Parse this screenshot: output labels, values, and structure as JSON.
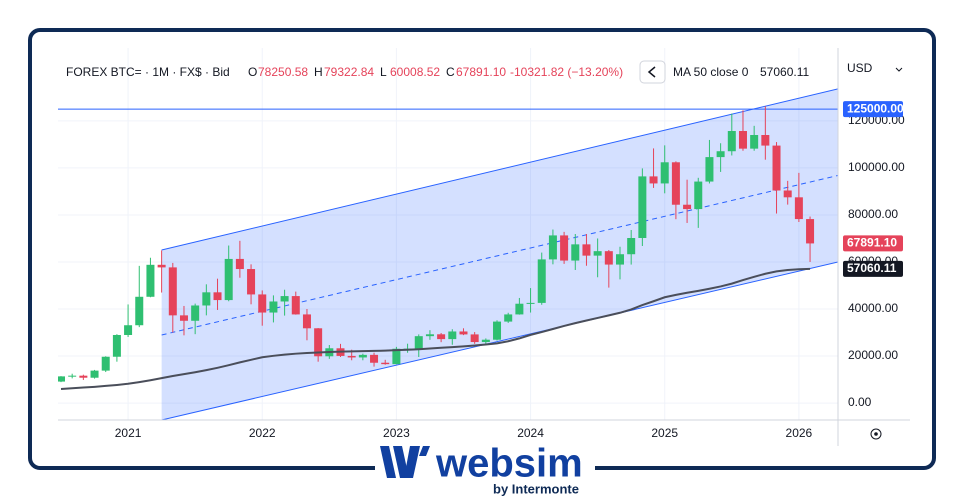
{
  "header": {
    "symbol": "FOREX BTC= · 1M · FX$ · Bid",
    "ohlc": [
      {
        "key": "O",
        "value": "78250.58"
      },
      {
        "key": "H",
        "value": "79322.84"
      },
      {
        "key": "L",
        "value": "60008.52"
      },
      {
        "key": "C",
        "value": "67891.10"
      }
    ],
    "change": "-10321.82 (−13.20%)",
    "indicator": "MA 50 close 0",
    "currency": "USD"
  },
  "chart_data": {
    "type": "candlestick",
    "categories": [
      null,
      null,
      null,
      null,
      null,
      null,
      "2021",
      null,
      null,
      null,
      null,
      null,
      null,
      null,
      null,
      null,
      null,
      null,
      "2022",
      null,
      null,
      null,
      null,
      null,
      null,
      null,
      null,
      null,
      null,
      null,
      "2023",
      null,
      null,
      null,
      null,
      null,
      null,
      null,
      null,
      null,
      null,
      null,
      "2024",
      null,
      null,
      null,
      null,
      null,
      null,
      null,
      null,
      null,
      null,
      null,
      "2025",
      null,
      null,
      null,
      null,
      null,
      null,
      null,
      null,
      null,
      null,
      null,
      "2026",
      null
    ],
    "open": [
      9140,
      11350,
      11650,
      10780,
      13800,
      19700,
      28950,
      33100,
      45200,
      58800,
      57700,
      37300,
      35000,
      41500,
      47100,
      43800,
      61300,
      57000,
      46200,
      38500,
      43200,
      45500,
      37700,
      31800,
      19900,
      23300,
      20050,
      19400,
      20500,
      17150,
      16550,
      23100,
      23150,
      28450,
      29250,
      27200,
      30450,
      29200,
      25950,
      26950,
      34650,
      37700,
      42250,
      42600,
      61100,
      71300,
      60600,
      67500,
      62700,
      64600,
      58900,
      63300,
      70200,
      96400,
      93400,
      102400,
      84350,
      82500,
      94200,
      104600,
      107100,
      115700,
      108200,
      114000,
      109500,
      90400,
      87500,
      78250.58
    ],
    "high": [
      11450,
      12480,
      12070,
      14100,
      19900,
      29300,
      41950,
      58350,
      61800,
      64900,
      59600,
      41300,
      42300,
      50500,
      52900,
      67000,
      69000,
      59000,
      47900,
      45800,
      48200,
      47400,
      40000,
      31900,
      24700,
      25200,
      22700,
      21000,
      21400,
      18400,
      23900,
      25250,
      29200,
      31000,
      29800,
      31400,
      31800,
      30200,
      27500,
      35200,
      38400,
      44700,
      48900,
      64000,
      73800,
      72800,
      71900,
      71900,
      70000,
      65100,
      66500,
      73600,
      99800,
      108300,
      109600,
      102800,
      95000,
      95800,
      111900,
      110500,
      123100,
      124500,
      117900,
      126200,
      111000,
      94500,
      97900,
      79322.84
    ],
    "low": [
      8900,
      10500,
      9830,
      10400,
      13200,
      17600,
      28100,
      32300,
      45000,
      47000,
      30000,
      28800,
      29300,
      37300,
      39600,
      43300,
      53300,
      42000,
      32900,
      34300,
      37200,
      37600,
      26700,
      17600,
      18800,
      19600,
      18200,
      18200,
      15500,
      16300,
      16500,
      21400,
      19600,
      26900,
      25900,
      24800,
      28900,
      25200,
      24900,
      26600,
      34100,
      37600,
      38500,
      41800,
      59000,
      59200,
      56600,
      58400,
      53500,
      49100,
      52600,
      58900,
      66800,
      91500,
      89200,
      78200,
      76600,
      74500,
      93400,
      98300,
      105300,
      107300,
      107300,
      103500,
      80600,
      84400,
      77000,
      60008.52
    ],
    "close": [
      11350,
      11650,
      10780,
      13800,
      19700,
      28950,
      33100,
      45200,
      58800,
      57700,
      37300,
      35000,
      41500,
      47100,
      43800,
      61300,
      57000,
      46200,
      38500,
      43200,
      45500,
      37700,
      31800,
      19900,
      23300,
      20050,
      19400,
      20500,
      17150,
      16550,
      23100,
      23150,
      28450,
      29250,
      27200,
      30450,
      29200,
      25950,
      26950,
      34650,
      37700,
      42250,
      42600,
      61100,
      71300,
      60600,
      67500,
      62700,
      64600,
      58900,
      63300,
      70200,
      96400,
      93400,
      102400,
      84350,
      82500,
      94200,
      104600,
      107100,
      115700,
      108200,
      114000,
      109500,
      90400,
      87500,
      78250.58,
      67891.1
    ],
    "up_color": "#2fbf71",
    "down_color": "#e5435a",
    "ma": {
      "name": "MA 50 close 0",
      "color": "#4a4e5a",
      "values": [
        6000,
        6300,
        6600,
        6900,
        7300,
        7700,
        8200,
        8900,
        9700,
        10600,
        11500,
        12300,
        13100,
        14000,
        15000,
        16100,
        17300,
        18400,
        19500,
        20100,
        20600,
        21000,
        21300,
        21500,
        21700,
        21900,
        22000,
        22100,
        22200,
        22300,
        22500,
        22700,
        22900,
        23200,
        23500,
        23800,
        24100,
        24500,
        24900,
        25400,
        26300,
        27500,
        29000,
        30200,
        31500,
        32800,
        34000,
        35100,
        36200,
        37300,
        38400,
        39800,
        41700,
        43300,
        45000,
        46000,
        46900,
        47700,
        48600,
        49600,
        50800,
        52300,
        53700,
        55000,
        56000,
        56600,
        56900,
        57060.11
      ]
    },
    "ylim": [
      -7200,
      151000
    ],
    "yticks": [
      {
        "value": 0,
        "label": "0.00"
      },
      {
        "value": 20000,
        "label": "20000.00"
      },
      {
        "value": 40000,
        "label": "40000.00"
      },
      {
        "value": 60000,
        "label": "60000.00"
      },
      {
        "value": 80000,
        "label": "80000.00"
      },
      {
        "value": 100000,
        "label": "100000.00"
      },
      {
        "value": 120000,
        "label": "120000.00"
      }
    ],
    "hline": {
      "value": 125000,
      "label": "125000.00",
      "color": "#2962ff"
    },
    "last_close_label": "67891.10",
    "channel": {
      "upper": [
        65100,
        133600
      ],
      "lower": [
        -7200,
        60000
      ],
      "color": "#2962ff"
    }
  }
}
